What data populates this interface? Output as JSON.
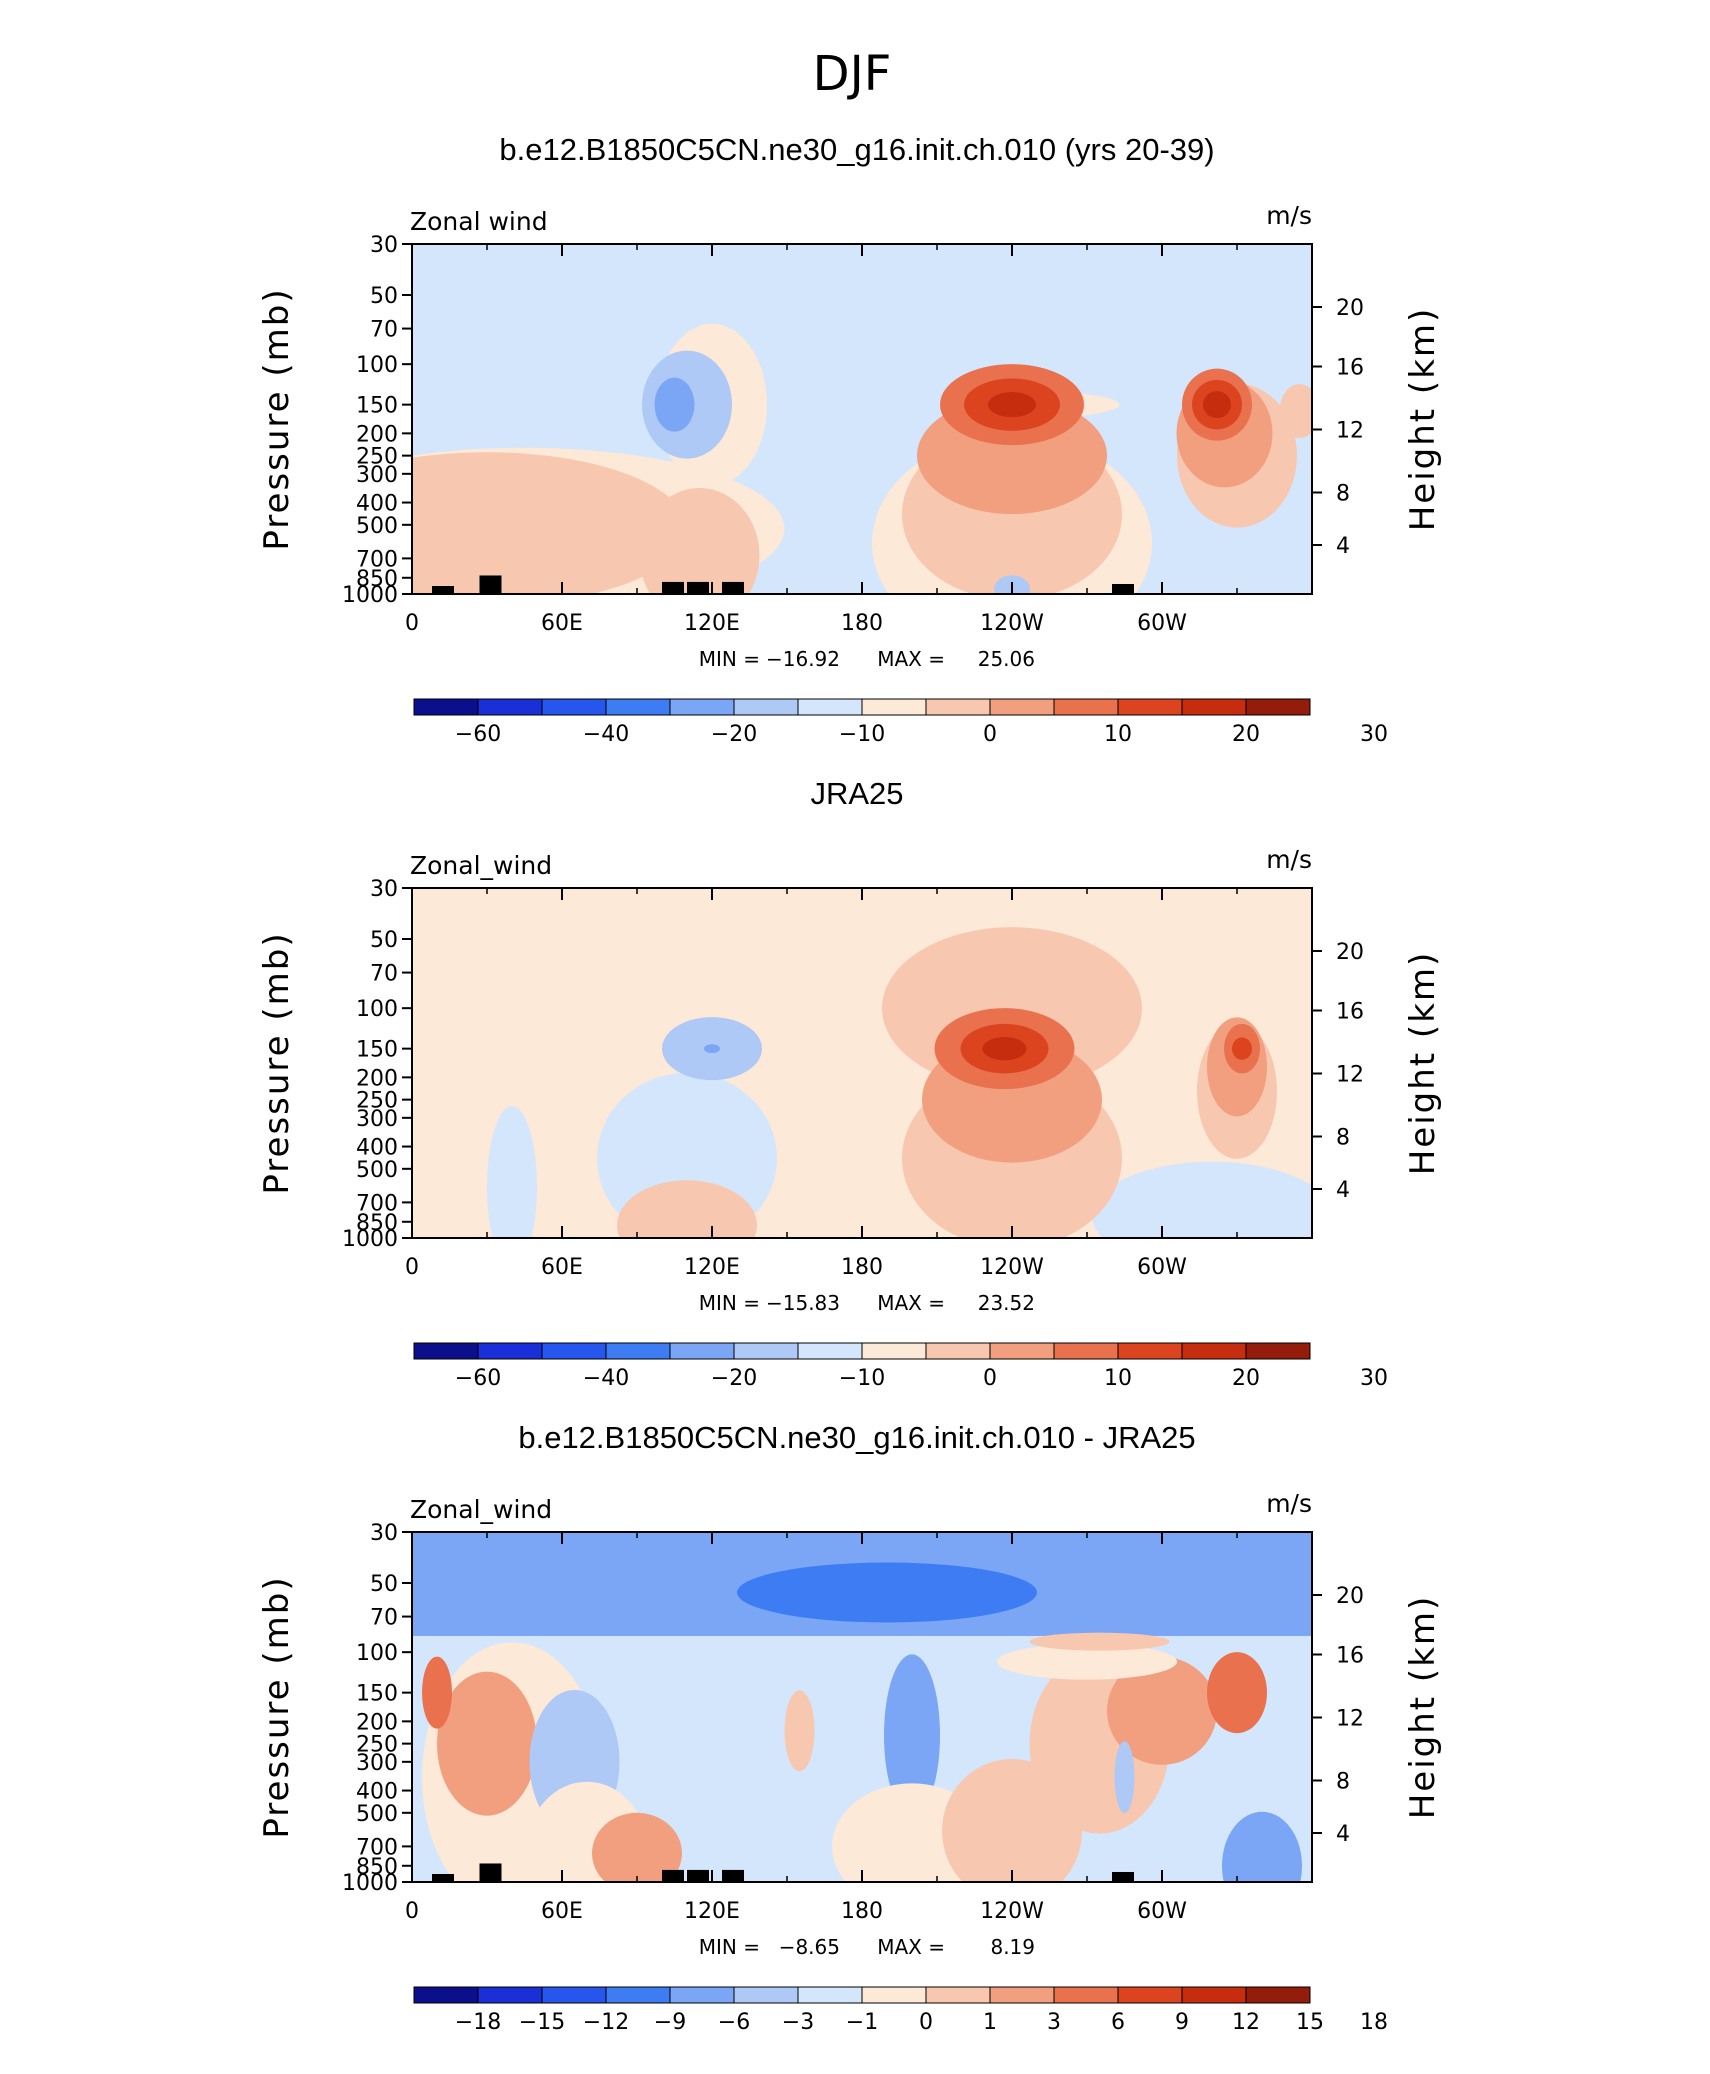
{
  "figure_title": "DJF",
  "colors": {
    "full_scale": [
      "#0c0f8c",
      "#1a2fd8",
      "#2656ee",
      "#3d7cf2",
      "#7aa6f5",
      "#afc9f6",
      "#d3e6fb",
      "#fde9d8",
      "#f8c7b0",
      "#f29f80",
      "#e9714e",
      "#dc4420",
      "#c62d0f",
      "#941c0a"
    ],
    "diff_scale": [
      "#0c0f8c",
      "#1a2fd8",
      "#2656ee",
      "#3d7cf2",
      "#7aa6f5",
      "#afc9f6",
      "#d3e6fb",
      "#fde9d8",
      "#f8c7b0",
      "#f29f80",
      "#e9714e",
      "#dc4420",
      "#c62d0f",
      "#941c0a"
    ],
    "land": "#000000"
  },
  "chart_data": [
    {
      "type": "heatmap",
      "title": "b.e12.B1850C5CN.ne30_g16.init.ch.010 (yrs 20-39)",
      "left_label": "Zonal wind",
      "units": "m/s",
      "ylabel": "Pressure  (mb)",
      "ylabel_right": "Height  (km)",
      "x_ticks": [
        "0",
        "60E",
        "120E",
        "180",
        "120W",
        "60W"
      ],
      "y_ticks": [
        "30",
        "50",
        "70",
        "100",
        "150",
        "200",
        "250",
        "300",
        "400",
        "500",
        "700",
        "850",
        "1000"
      ],
      "y_ticks_right": [
        "20",
        "16",
        "12",
        "8",
        "4"
      ],
      "stats": {
        "min_label": "MIN =",
        "min": "−16.92",
        "max_label": "MAX =",
        "max": "25.06"
      },
      "colorbar_labels": [
        "−60",
        "−40",
        "−20",
        "−10",
        "0",
        "10",
        "20",
        "30"
      ],
      "regions": [
        {
          "level": 7,
          "x": 45,
          "y": 520,
          "rx": 260,
          "ry": 180
        },
        {
          "level": 8,
          "x": 30,
          "y": 520,
          "rx": 200,
          "ry": 170
        },
        {
          "level": 7,
          "x": 247,
          "y": 150,
          "rx": 90,
          "ry": 30
        },
        {
          "level": 8,
          "x": 115,
          "y": 680,
          "rx": 60,
          "ry": 150
        },
        {
          "level": 7,
          "x": 120,
          "y": 150,
          "rx": 55,
          "ry": 180
        },
        {
          "level": 5,
          "x": 110,
          "y": 150,
          "rx": 45,
          "ry": 120
        },
        {
          "level": 4,
          "x": 105,
          "y": 150,
          "rx": 20,
          "ry": 60
        },
        {
          "level": 7,
          "x": 240,
          "y": 600,
          "rx": 140,
          "ry": 240
        },
        {
          "level": 8,
          "x": 240,
          "y": 450,
          "rx": 110,
          "ry": 190
        },
        {
          "level": 9,
          "x": 240,
          "y": 250,
          "rx": 95,
          "ry": 130
        },
        {
          "level": 10,
          "x": 240,
          "y": 150,
          "rx": 72,
          "ry": 90
        },
        {
          "level": 11,
          "x": 240,
          "y": 150,
          "rx": 48,
          "ry": 58
        },
        {
          "level": 12,
          "x": 240,
          "y": 150,
          "rx": 24,
          "ry": 28
        },
        {
          "level": 8,
          "x": 330,
          "y": 250,
          "rx": 60,
          "ry": 160
        },
        {
          "level": 9,
          "x": 325,
          "y": 200,
          "rx": 48,
          "ry": 120
        },
        {
          "level": 10,
          "x": 322,
          "y": 150,
          "rx": 35,
          "ry": 80
        },
        {
          "level": 11,
          "x": 322,
          "y": 150,
          "rx": 25,
          "ry": 55
        },
        {
          "level": 12,
          "x": 322,
          "y": 150,
          "rx": 14,
          "ry": 30
        },
        {
          "level": 5,
          "x": 240,
          "y": 950,
          "rx": 18,
          "ry": 30
        },
        {
          "level": 8,
          "x": 355,
          "y": 160,
          "rx": 20,
          "ry": 60
        }
      ],
      "land": [
        [
          8,
          1000,
          1000
        ],
        [
          27,
          900,
          1000
        ],
        [
          100,
          960,
          1000
        ],
        [
          110,
          960,
          1000
        ],
        [
          124,
          960,
          1000
        ],
        [
          280,
          980,
          1000
        ]
      ]
    },
    {
      "type": "heatmap",
      "title": "JRA25",
      "left_label": "Zonal_wind",
      "units": "m/s",
      "ylabel": "Pressure  (mb)",
      "ylabel_right": "Height  (km)",
      "x_ticks": [
        "0",
        "60E",
        "120E",
        "180",
        "120W",
        "60W"
      ],
      "y_ticks": [
        "30",
        "50",
        "70",
        "100",
        "150",
        "200",
        "250",
        "300",
        "400",
        "500",
        "700",
        "850",
        "1000"
      ],
      "y_ticks_right": [
        "20",
        "16",
        "12",
        "8",
        "4"
      ],
      "stats": {
        "min_label": "MIN =",
        "min": "−15.83",
        "max_label": "MAX =",
        "max": "23.52"
      },
      "colorbar_labels": [
        "−60",
        "−40",
        "−20",
        "−10",
        "0",
        "10",
        "20",
        "30"
      ],
      "regions": [
        {
          "level": 6,
          "x": 110,
          "y": 450,
          "rx": 90,
          "ry": 190
        },
        {
          "level": 6,
          "x": 40,
          "y": 600,
          "rx": 25,
          "ry": 180
        },
        {
          "level": 5,
          "x": 120,
          "y": 150,
          "rx": 50,
          "ry": 70
        },
        {
          "level": 4,
          "x": 120,
          "y": 150,
          "rx": 8,
          "ry": 10
        },
        {
          "level": 6,
          "x": 320,
          "y": 800,
          "rx": 120,
          "ry": 120
        },
        {
          "level": 8,
          "x": 110,
          "y": 880,
          "rx": 70,
          "ry": 100
        },
        {
          "level": 8,
          "x": 240,
          "y": 100,
          "rx": 130,
          "ry": 180
        },
        {
          "level": 8,
          "x": 240,
          "y": 450,
          "rx": 110,
          "ry": 200
        },
        {
          "level": 9,
          "x": 240,
          "y": 250,
          "rx": 90,
          "ry": 140
        },
        {
          "level": 10,
          "x": 237,
          "y": 150,
          "rx": 70,
          "ry": 90
        },
        {
          "level": 11,
          "x": 237,
          "y": 150,
          "rx": 44,
          "ry": 55
        },
        {
          "level": 12,
          "x": 237,
          "y": 150,
          "rx": 22,
          "ry": 26
        },
        {
          "level": 8,
          "x": 330,
          "y": 230,
          "rx": 40,
          "ry": 150
        },
        {
          "level": 9,
          "x": 330,
          "y": 180,
          "rx": 30,
          "ry": 110
        },
        {
          "level": 10,
          "x": 332,
          "y": 150,
          "rx": 18,
          "ry": 55
        },
        {
          "level": 11,
          "x": 332,
          "y": 150,
          "rx": 10,
          "ry": 25
        }
      ],
      "land": []
    },
    {
      "type": "heatmap",
      "title": "b.e12.B1850C5CN.ne30_g16.init.ch.010 - JRA25",
      "left_label": "Zonal_wind",
      "units": "m/s",
      "ylabel": "Pressure  (mb)",
      "ylabel_right": "Height  (km)",
      "x_ticks": [
        "0",
        "60E",
        "120E",
        "180",
        "120W",
        "60W"
      ],
      "y_ticks": [
        "30",
        "50",
        "70",
        "100",
        "150",
        "200",
        "250",
        "300",
        "400",
        "500",
        "700",
        "850",
        "1000"
      ],
      "y_ticks_right": [
        "20",
        "16",
        "12",
        "8",
        "4"
      ],
      "stats": {
        "min_label": "MIN =",
        "min": "−8.65",
        "max_label": "MAX =",
        "max": "8.19"
      },
      "colorbar_labels": [
        "−18",
        "−15",
        "−12",
        "−9",
        "−6",
        "−3",
        "−1",
        "0",
        "1",
        "3",
        "6",
        "9",
        "12",
        "15",
        "18"
      ],
      "regions": [
        {
          "level": 7,
          "x": 40,
          "y": 350,
          "rx": 90,
          "ry": 300
        },
        {
          "level": 9,
          "x": 30,
          "y": 250,
          "rx": 50,
          "ry": 160
        },
        {
          "level": 10,
          "x": 10,
          "y": 150,
          "rx": 15,
          "ry": 80
        },
        {
          "level": 5,
          "x": 65,
          "y": 300,
          "rx": 45,
          "ry": 160
        },
        {
          "level": 7,
          "x": 70,
          "y": 720,
          "rx": 60,
          "ry": 150
        },
        {
          "level": 9,
          "x": 90,
          "y": 750,
          "rx": 45,
          "ry": 90
        },
        {
          "level": 6,
          "x": 180,
          "y": 330,
          "rx": 50,
          "ry": 300
        },
        {
          "level": 4,
          "x": 200,
          "y": 230,
          "rx": 28,
          "ry": 180
        },
        {
          "level": 8,
          "x": 155,
          "y": 220,
          "rx": 15,
          "ry": 90
        },
        {
          "level": 7,
          "x": 200,
          "y": 700,
          "rx": 80,
          "ry": 140
        },
        {
          "level": 8,
          "x": 240,
          "y": 600,
          "rx": 70,
          "ry": 160
        },
        {
          "level": 8,
          "x": 275,
          "y": 250,
          "rx": 70,
          "ry": 200
        },
        {
          "level": 9,
          "x": 300,
          "y": 180,
          "rx": 55,
          "ry": 120
        },
        {
          "level": 10,
          "x": 330,
          "y": 150,
          "rx": 30,
          "ry": 90
        },
        {
          "level": 5,
          "x": 285,
          "y": 350,
          "rx": 10,
          "ry": 80
        },
        {
          "level": 7,
          "x": 270,
          "y": 110,
          "rx": 90,
          "ry": 40
        },
        {
          "level": 8,
          "x": 275,
          "y": 90,
          "rx": 70,
          "ry": 20
        },
        {
          "level": 4,
          "x": 340,
          "y": 850,
          "rx": 40,
          "ry": 120
        }
      ],
      "land": [
        [
          8,
          1000,
          1000
        ],
        [
          27,
          900,
          1000
        ],
        [
          100,
          960,
          1000
        ],
        [
          110,
          960,
          1000
        ],
        [
          124,
          960,
          1000
        ],
        [
          280,
          980,
          1000
        ]
      ]
    }
  ]
}
